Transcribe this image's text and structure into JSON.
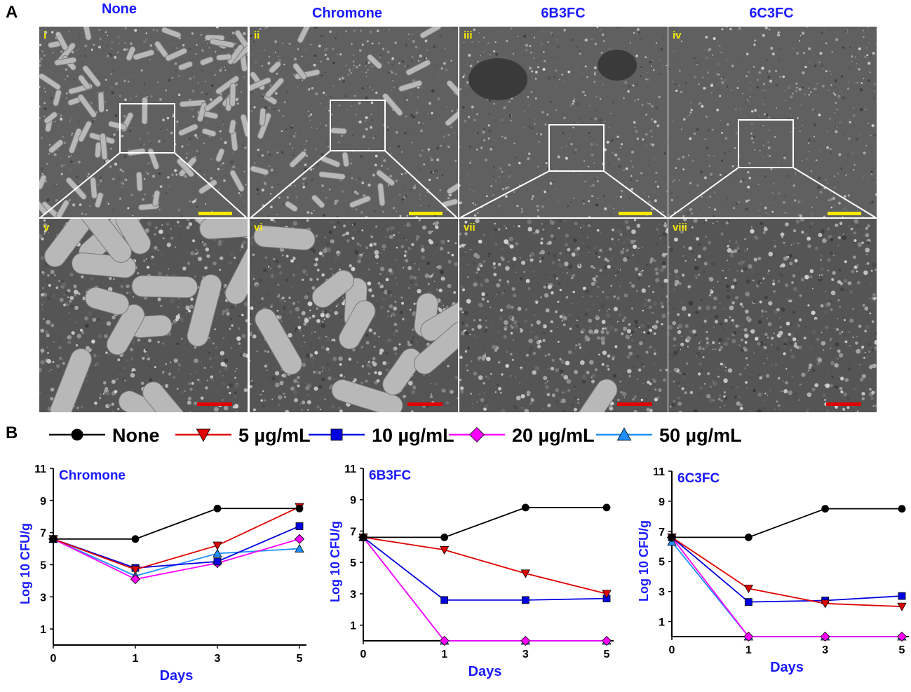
{
  "panel_a": {
    "letter": "A",
    "columns": [
      "None",
      "Chromone",
      "6B3FC",
      "6C3FC"
    ],
    "top_labels": [
      "i",
      "ii",
      "iii",
      "iv"
    ],
    "bottom_labels": [
      "v",
      "vi",
      "vii",
      "viii"
    ],
    "colors": {
      "title": "#1a1aff",
      "roman": "#f5e800",
      "scale_top": "#f5e800",
      "scale_bottom": "#e00000"
    }
  },
  "panel_b": {
    "letter": "B",
    "legend": [
      {
        "label": "None",
        "color": "#000000",
        "marker": "circle"
      },
      {
        "label": "5 µg/mL",
        "color": "#e00000",
        "marker": "triangle-down"
      },
      {
        "label": "10 µg/mL",
        "color": "#0000e0",
        "marker": "square"
      },
      {
        "label": "20 µg/mL",
        "color": "#ff00ff",
        "marker": "diamond"
      },
      {
        "label": "50 µg/mL",
        "color": "#1e90ff",
        "marker": "triangle-up"
      }
    ]
  },
  "chart_data": [
    {
      "type": "line",
      "title": "Chromone",
      "xlabel": "Days",
      "ylabel": "Log 10 CFU/g",
      "x": [
        0,
        1,
        3,
        5
      ],
      "ylim": [
        0,
        11
      ],
      "yticks": [
        1,
        3,
        5,
        7,
        9,
        11
      ],
      "series": [
        {
          "name": "None",
          "values": [
            6.6,
            6.6,
            8.5,
            8.5
          ]
        },
        {
          "name": "5 µg/mL",
          "values": [
            6.6,
            4.7,
            6.2,
            8.6
          ]
        },
        {
          "name": "10 µg/mL",
          "values": [
            6.6,
            4.8,
            5.2,
            7.4
          ]
        },
        {
          "name": "20 µg/mL",
          "values": [
            6.6,
            4.1,
            5.1,
            6.6
          ]
        },
        {
          "name": "50 µg/mL",
          "values": [
            6.6,
            4.3,
            5.7,
            6.0
          ]
        }
      ]
    },
    {
      "type": "line",
      "title": "6B3FC",
      "xlabel": "Days",
      "ylabel": "Log 10 CFU/g",
      "x": [
        0,
        1,
        3,
        5
      ],
      "ylim": [
        0,
        11
      ],
      "yticks": [
        1,
        3,
        5,
        7,
        9,
        11
      ],
      "series": [
        {
          "name": "None",
          "values": [
            6.6,
            6.6,
            8.5,
            8.5
          ]
        },
        {
          "name": "5 µg/mL",
          "values": [
            6.6,
            5.8,
            4.3,
            3.0
          ]
        },
        {
          "name": "10 µg/mL",
          "values": [
            6.6,
            2.6,
            2.6,
            2.7
          ]
        },
        {
          "name": "20 µg/mL",
          "values": [
            6.6,
            0.0,
            0.0,
            0.0
          ]
        },
        {
          "name": "50 µg/mL",
          "values": [
            6.6,
            0.0,
            0.0,
            0.0
          ]
        }
      ]
    },
    {
      "type": "line",
      "title": "6C3FC",
      "xlabel": "Days",
      "ylabel": "Log 10 CFU/g",
      "x": [
        0,
        1,
        3,
        5
      ],
      "ylim": [
        0,
        11
      ],
      "yticks": [
        1,
        3,
        5,
        7,
        9,
        11
      ],
      "series": [
        {
          "name": "None",
          "values": [
            6.6,
            6.6,
            8.5,
            8.5
          ]
        },
        {
          "name": "5 µg/mL",
          "values": [
            6.6,
            3.2,
            2.2,
            2.0
          ]
        },
        {
          "name": "10 µg/mL",
          "values": [
            6.6,
            2.3,
            2.4,
            2.7
          ]
        },
        {
          "name": "20 µg/mL",
          "values": [
            6.6,
            0.0,
            0.0,
            0.0
          ]
        },
        {
          "name": "50 µg/mL",
          "values": [
            6.3,
            0.0,
            0.0,
            0.0
          ]
        }
      ]
    }
  ]
}
